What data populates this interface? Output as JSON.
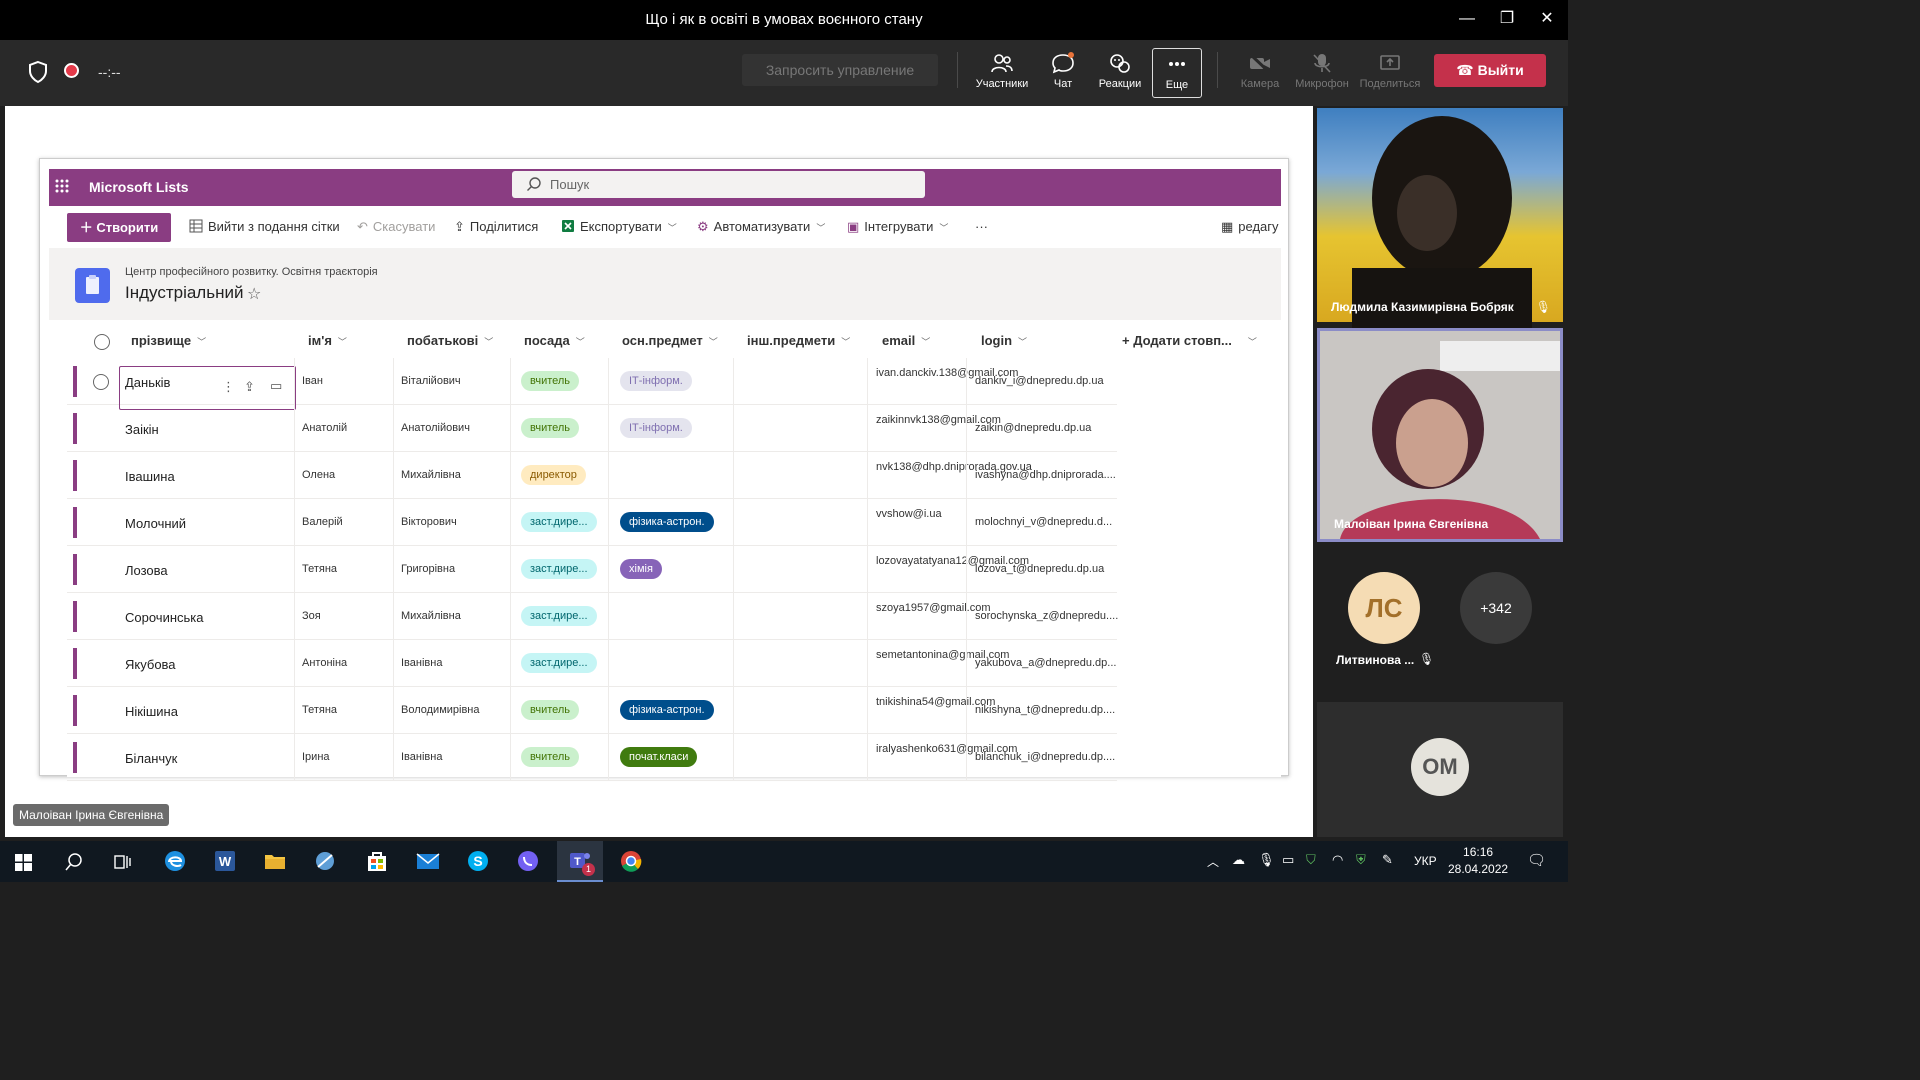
{
  "window": {
    "title": "Що і як в освіті в умовах воєнного стану"
  },
  "meeting": {
    "timer": "--:--",
    "request_control": "Запросить управление",
    "buttons": [
      {
        "label": "Участники",
        "icon": "participants-icon"
      },
      {
        "label": "Чат",
        "icon": "chat-icon"
      },
      {
        "label": "Реакции",
        "icon": "reactions-icon"
      },
      {
        "label": "Еще",
        "icon": "more-icon"
      },
      {
        "label": "Камера",
        "icon": "camera-icon"
      },
      {
        "label": "Микрофон",
        "icon": "microphone-icon"
      },
      {
        "label": "Поделиться",
        "icon": "share-icon"
      }
    ],
    "leave_label": "Выйти"
  },
  "lists": {
    "brand": "Microsoft Lists",
    "search_placeholder": "Пошук",
    "commands": {
      "create": "Створити",
      "exit_grid": "Вийти з подання сітки",
      "undo": "Скасувати",
      "share": "Поділитися",
      "export": "Експортувати",
      "automate": "Автоматизувати",
      "integrate": "Інтегрувати",
      "more": "···",
      "edit": "редагу"
    },
    "breadcrumb": "Центр професійного розвитку. Освітня траєкторія",
    "title": "Індустріальний",
    "columns": [
      "прізвище",
      "ім'я",
      "побатькові",
      "посада",
      "осн.предмет",
      "інш.предмети",
      "email",
      "login",
      "+ Додати стовп..."
    ],
    "rows": [
      {
        "surname": "Даньків",
        "name": "Іван",
        "patronymic": "Віталійович",
        "position": "вчитель",
        "subject": "ІТ-інформ.",
        "email": "ivan.danckiv.138@gmail.com",
        "login": "dankiv_i@dnepredu.dp.ua"
      },
      {
        "surname": "Заікін",
        "name": "Анатолій",
        "patronymic": "Анатолійович",
        "position": "вчитель",
        "subject": "ІТ-інформ.",
        "email": "zaikinnvk138@gmail.com",
        "login": "zaikin@dnepredu.dp.ua"
      },
      {
        "surname": "Івашина",
        "name": "Олена",
        "patronymic": "Михайлівна",
        "position": "директор",
        "subject": "",
        "email": "nvk138@dhp.dniprorada.gov.ua",
        "login": "ivashyna@dhp.dniprorada...."
      },
      {
        "surname": "Молочний",
        "name": "Валерій",
        "patronymic": "Вікторович",
        "position": "заст.дире...",
        "subject": "фізика-астрон.",
        "email": "vvshow@i.ua",
        "login": "molochnyi_v@dnepredu.d..."
      },
      {
        "surname": "Лозова",
        "name": "Тетяна",
        "patronymic": "Григорівна",
        "position": "заст.дире...",
        "subject": "хімія",
        "email": "lozovayatatyana12@gmail.com",
        "login": "lozova_t@dnepredu.dp.ua"
      },
      {
        "surname": "Сорочинська",
        "name": "Зоя",
        "patronymic": "Михайлівна",
        "position": "заст.дире...",
        "subject": "",
        "email": "szoya1957@gmail.com",
        "login": "sorochynska_z@dnepredu...."
      },
      {
        "surname": "Якубова",
        "name": "Антоніна",
        "patronymic": "Іванівна",
        "position": "заст.дире...",
        "subject": "",
        "email": "semetantonina@gmail.com",
        "login": "yakubova_a@dnepredu.dp..."
      },
      {
        "surname": "Нікішина",
        "name": "Тетяна",
        "patronymic": "Володимирівна",
        "position": "вчитель",
        "subject": "фізика-астрон.",
        "email": "tnikishina54@gmail.com",
        "login": "nikishyna_t@dnepredu.dp...."
      },
      {
        "surname": "Біланчук",
        "name": "Ірина",
        "patronymic": "Іванівна",
        "position": "вчитель",
        "subject": "почат.класи",
        "email": "iralyashenko631@gmail.com",
        "login": "bilanchuk_i@dnepredu.dp...."
      }
    ]
  },
  "participants": {
    "tile1": "Людмила Казимирівна Бобряк",
    "tile2": "Малоіван Ірина Євгенівна",
    "avatar1_initials": "ЛС",
    "avatar1_name": "Литвинова ...",
    "overflow": "+342",
    "avatar2_initials": "ОМ",
    "presenter_badge": "Малоіван Ірина Євгенівна"
  },
  "taskbar": {
    "lang": "УКР",
    "time": "16:16",
    "date": "28.04.2022",
    "teams_badge": "1"
  },
  "colors": {
    "accent": "#8a3d82",
    "leave": "#c4314b",
    "list_icon": "#4f6bed"
  }
}
